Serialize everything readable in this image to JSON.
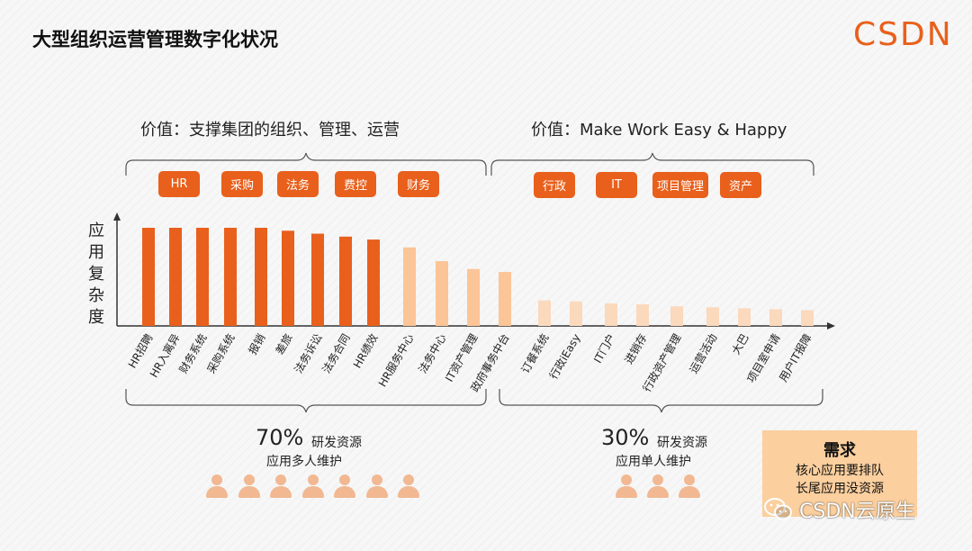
{
  "slide": {
    "title": "大型组织运营管理数字化状况",
    "logo": "CSDN"
  },
  "values": {
    "left": "价值：支撑集团的组织、管理、运营",
    "right": "价值：Make Work Easy & Happy"
  },
  "tags_left": [
    "HR",
    "采购",
    "法务",
    "费控",
    "财务"
  ],
  "tags_right": [
    "行政",
    "IT",
    "项目管理",
    "资产"
  ],
  "colors": {
    "accent": "#e8601c",
    "light": "#fbc597",
    "lighter": "#fbd9bd",
    "need_box": "#fbcf9e"
  },
  "chart_data": {
    "type": "bar",
    "ylabel": "应用复杂度",
    "xlabel": "",
    "ylim": [
      0,
      100
    ],
    "categories": [
      "HR招聘",
      "HR入离异",
      "财务系统",
      "采购系统",
      "报销",
      "差旅",
      "法务诉讼",
      "法务合同",
      "HR绩效",
      "HR服务中心",
      "法务中心",
      "IT资产管理",
      "政府事务中台",
      "订餐系统",
      "行政iEasy",
      "IT门户",
      "进销存",
      "行政资产管理",
      "运营活动",
      "大巴",
      "项目室申请",
      "用户IT报障"
    ],
    "values": [
      100,
      100,
      100,
      100,
      100,
      97,
      94,
      91,
      88,
      80,
      66,
      58,
      55,
      26,
      25,
      23,
      22,
      20,
      19,
      18,
      17,
      16
    ],
    "tiers": [
      "dark",
      "dark",
      "dark",
      "dark",
      "dark",
      "dark",
      "dark",
      "dark",
      "dark",
      "light",
      "light",
      "light",
      "light",
      "lighter",
      "lighter",
      "lighter",
      "lighter",
      "lighter",
      "lighter",
      "lighter",
      "lighter",
      "lighter"
    ]
  },
  "shares": {
    "left": {
      "pct": "70%",
      "label": "研发资源",
      "sub": "应用多人维护",
      "people": 7
    },
    "right": {
      "pct": "30%",
      "label": "研发资源",
      "sub": "应用单人维护",
      "people": 3
    }
  },
  "need": {
    "title": "需求",
    "lines": [
      "核心应用要排队",
      "长尾应用没资源"
    ]
  },
  "watermark": "CSDN云原生"
}
